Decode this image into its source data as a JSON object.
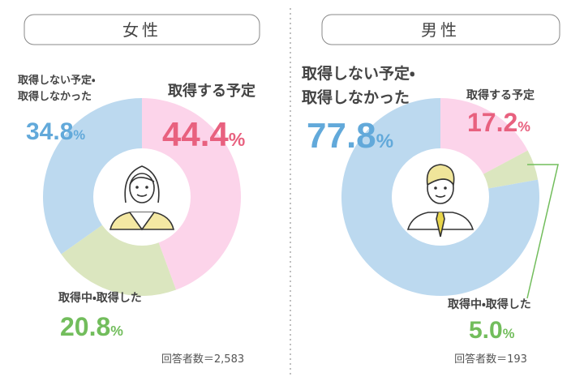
{
  "chart_data": [
    {
      "type": "pie",
      "donut": true,
      "title": "女性",
      "categories": [
        "取得する予定",
        "取得中・取得した",
        "取得しない予定・\n取得しなかった"
      ],
      "values": [
        44.4,
        20.8,
        34.8
      ],
      "value_labels": [
        "44.4%",
        "20.8%",
        "34.8%"
      ],
      "colors": [
        "#fcd4ea",
        "#dbe6bf",
        "#bcd9ef"
      ],
      "label_colors": [
        "#e8617f",
        "#72bd5c",
        "#62a9da"
      ],
      "note": "回答者数＝2,583"
    },
    {
      "type": "pie",
      "donut": true,
      "title": "男性",
      "categories": [
        "取得する予定",
        "取得中・取得した",
        "取得しない予定・\n取得しなかった"
      ],
      "values": [
        17.2,
        5.0,
        77.8
      ],
      "value_labels": [
        "17.2%",
        "5.0%",
        "77.8%"
      ],
      "colors": [
        "#fcd4ea",
        "#dbe6bf",
        "#bcd9ef"
      ],
      "label_colors": [
        "#e8617f",
        "#72bd5c",
        "#62a9da"
      ],
      "note": "回答者数＝193"
    }
  ]
}
